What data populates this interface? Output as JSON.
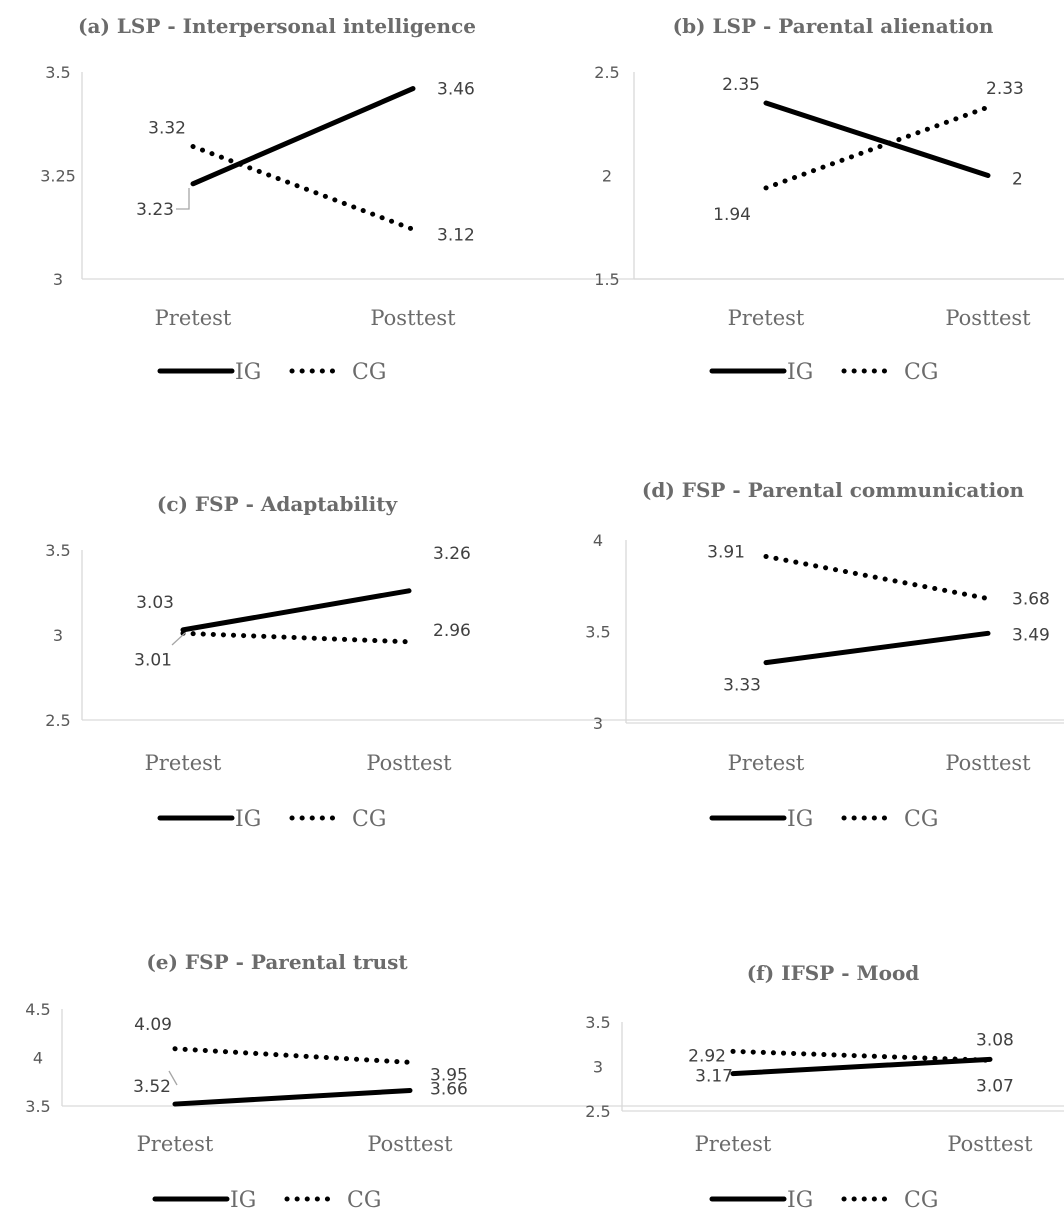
{
  "chart_data": [
    {
      "type": "line",
      "title": "(a) LSP - Interpersonal intelligence",
      "categories": [
        "Pretest",
        "Posttest"
      ],
      "yticks": [
        "3.5",
        "3.25",
        "3"
      ],
      "ylim": [
        3,
        3.5
      ],
      "series": [
        {
          "name": "IG",
          "style": "solid",
          "values": [
            3.23,
            3.46
          ],
          "labels": [
            "3.23",
            "3.46"
          ]
        },
        {
          "name": "CG",
          "style": "dotted",
          "values": [
            3.32,
            3.12
          ],
          "labels": [
            "3.32",
            "3.12"
          ]
        }
      ],
      "legend": "bottom",
      "grid": false
    },
    {
      "type": "line",
      "title": "(b) LSP - Parental alienation",
      "categories": [
        "Pretest",
        "Posttest"
      ],
      "yticks": [
        "2.5",
        "2",
        "1.5"
      ],
      "ylim": [
        1.5,
        2.5
      ],
      "series": [
        {
          "name": "IG",
          "style": "solid",
          "values": [
            2.35,
            2
          ],
          "labels": [
            "2.35",
            "2"
          ]
        },
        {
          "name": "CG",
          "style": "dotted",
          "values": [
            1.94,
            2.33
          ],
          "labels": [
            "1.94",
            "2.33"
          ]
        }
      ],
      "legend": "bottom",
      "grid": false
    },
    {
      "type": "line",
      "title": "(c) FSP - Adaptability",
      "categories": [
        "Pretest",
        "Posttest"
      ],
      "yticks": [
        "3.5",
        "3",
        "2.5"
      ],
      "ylim": [
        2.5,
        3.5
      ],
      "series": [
        {
          "name": "IG",
          "style": "solid",
          "values": [
            3.03,
            3.26
          ],
          "labels": [
            "3.03",
            "3.26"
          ]
        },
        {
          "name": "CG",
          "style": "dotted",
          "values": [
            3.01,
            2.96
          ],
          "labels": [
            "3.01",
            "2.96"
          ]
        }
      ],
      "legend": "bottom",
      "grid": false
    },
    {
      "type": "line",
      "title": "(d) FSP - Parental communication",
      "categories": [
        "Pretest",
        "Posttest"
      ],
      "yticks": [
        "4",
        "3.5",
        "3"
      ],
      "ylim": [
        3,
        4
      ],
      "series": [
        {
          "name": "IG",
          "style": "solid",
          "values": [
            3.33,
            3.49
          ],
          "labels": [
            "3.33",
            "3.49"
          ]
        },
        {
          "name": "CG",
          "style": "dotted",
          "values": [
            3.91,
            3.68
          ],
          "labels": [
            "3.91",
            "3.68"
          ]
        }
      ],
      "legend": "bottom",
      "grid": false
    },
    {
      "type": "line",
      "title": "(e) FSP - Parental trust",
      "categories": [
        "Pretest",
        "Posttest"
      ],
      "yticks": [
        "4.5",
        "4",
        "3.5"
      ],
      "ylim": [
        3.5,
        4.5
      ],
      "series": [
        {
          "name": "IG",
          "style": "solid",
          "values": [
            3.52,
            3.66
          ],
          "labels": [
            "3.52",
            "3.66"
          ]
        },
        {
          "name": "CG",
          "style": "dotted",
          "values": [
            4.09,
            3.95
          ],
          "labels": [
            "4.09",
            "3.95"
          ]
        }
      ],
      "legend": "bottom",
      "grid": false
    },
    {
      "type": "line",
      "title": "(f) IFSP - Mood",
      "categories": [
        "Pretest",
        "Posttest"
      ],
      "yticks": [
        "3.5",
        "3",
        "2.5"
      ],
      "ylim": [
        2.5,
        3.5
      ],
      "series": [
        {
          "name": "IG",
          "style": "solid",
          "values": [
            2.92,
            3.08
          ],
          "labels": [
            "2.92",
            "3.08"
          ]
        },
        {
          "name": "CG",
          "style": "dotted",
          "values": [
            3.17,
            3.07
          ],
          "labels": [
            "3.17",
            "3.07"
          ]
        }
      ],
      "legend": "bottom",
      "grid": false
    }
  ]
}
